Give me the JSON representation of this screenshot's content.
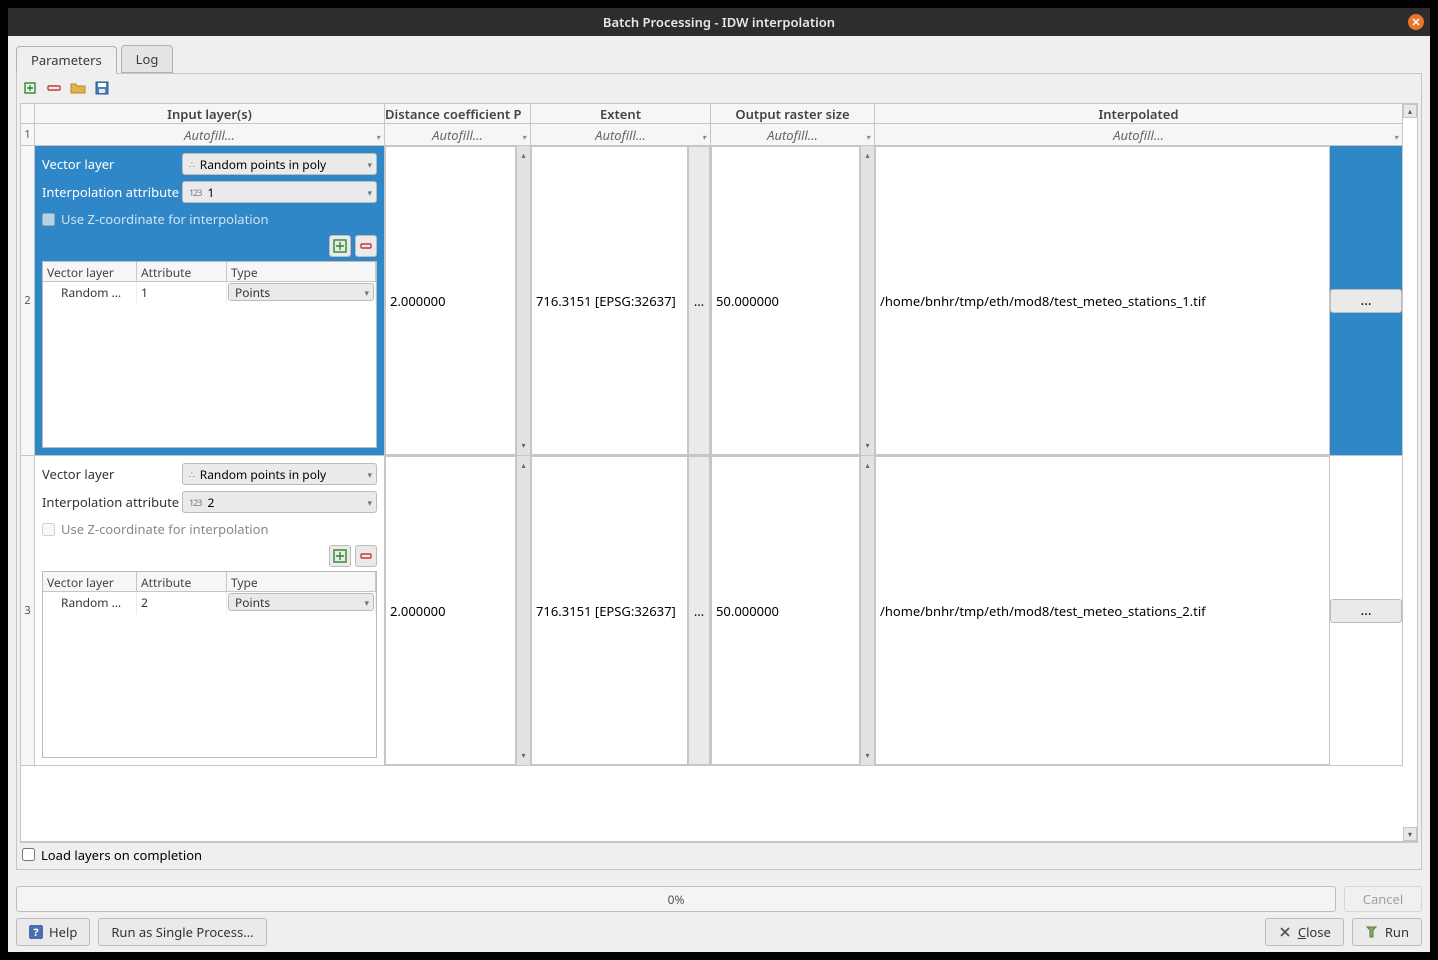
{
  "title": "Batch Processing - IDW interpolation",
  "tabs": {
    "parameters": "Parameters",
    "log": "Log"
  },
  "columns": {
    "input": "Input layer(s)",
    "distance": "Distance coefficient P",
    "extent": "Extent",
    "raster": "Output raster size",
    "interp": "Interpolated"
  },
  "col_widths": {
    "input": 350,
    "distance": 146,
    "extent": 180,
    "raster": 164,
    "interp": 440
  },
  "autofill": "Autofill…",
  "row_labels": {
    "r1": "1",
    "r2": "2",
    "r3": "3"
  },
  "input_labels": {
    "vector_layer": "Vector layer",
    "interp_attr": "Interpolation attribute",
    "zcoord": "Use Z-coordinate for interpolation",
    "tbl_vector": "Vector layer",
    "tbl_attr": "Attribute",
    "tbl_type": "Type"
  },
  "rows": [
    {
      "selected": true,
      "layer_combo": "Random points in poly",
      "attr_combo": "1",
      "tbl_layer": "Random …",
      "tbl_attr": "1",
      "tbl_type": "Points",
      "distance": "2.000000",
      "extent": "716.3151 [EPSG:32637]",
      "ext_btn": "…",
      "raster": "50.000000",
      "path": "/home/bnhr/tmp/eth/mod8/test_meteo_stations_1.tif",
      "dots": "…"
    },
    {
      "selected": false,
      "layer_combo": "Random points in poly",
      "attr_combo": "2",
      "tbl_layer": "Random …",
      "tbl_attr": "2",
      "tbl_type": "Points",
      "distance": "2.000000",
      "extent": "716.3151 [EPSG:32637]",
      "ext_btn": "…",
      "raster": "50.000000",
      "path": "/home/bnhr/tmp/eth/mod8/test_meteo_stations_2.tif",
      "dots": "…"
    }
  ],
  "footer": {
    "load_layers": "Load layers on completion",
    "progress": "0%",
    "cancel": "Cancel",
    "help": "Help",
    "single": "Run as Single Process…",
    "close": "Close",
    "run": "Run"
  },
  "colors": {
    "accent": "#2f87c7",
    "titlebar": "#2d2d2d",
    "close_btn": "#e8762f",
    "panel_bg": "#efefef",
    "border": "#c6c6c6"
  }
}
